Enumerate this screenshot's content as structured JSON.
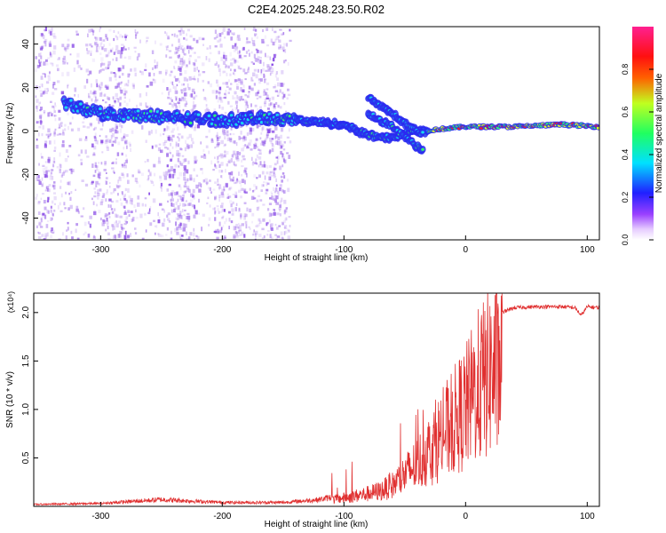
{
  "figure_title": "C2E4.2025.248.23.50.R02",
  "colors": {
    "snr_line": "#e03030",
    "speckle": "#8a4de6",
    "ridge_core": "#18d8f0",
    "ridge_edge": "#2a2af0",
    "hot": "#ff2020",
    "warm": "#e0ff20",
    "mid": "#30ff70"
  },
  "chart_data": [
    {
      "type": "heatmap",
      "title": "C2E4.2025.248.23.50.R02",
      "xlabel": "Height of straight line (km)",
      "ylabel": "Frequency (Hz)",
      "xlim": [
        -355,
        110
      ],
      "ylim": [
        -50,
        48
      ],
      "xticks": [
        -300,
        -200,
        -100,
        0,
        100
      ],
      "yticks": [
        -40,
        -20,
        0,
        20,
        40
      ],
      "colorbar": {
        "label": "Normalized spectral amplitude",
        "range": [
          0,
          1
        ],
        "ticks": [
          "0.0",
          "0.2",
          "0.4",
          "0.6",
          "0.8"
        ],
        "colormap": "rainbow (white-purple-blue-cyan-green-yellow-red-magenta)"
      },
      "ridges": [
        {
          "name": "main carrier",
          "points": [
            [
              -330,
              13
            ],
            [
              -300,
              8
            ],
            [
              -260,
              7
            ],
            [
              -200,
              5
            ],
            [
              -160,
              6
            ],
            [
              -140,
              5
            ],
            [
              -100,
              3
            ],
            [
              -80,
              -2
            ],
            [
              -60,
              -3
            ],
            [
              -45,
              0
            ],
            [
              -35,
              0
            ],
            [
              -20,
              1
            ],
            [
              0,
              2
            ],
            [
              40,
              2
            ],
            [
              80,
              3
            ],
            [
              110,
              2
            ]
          ]
        },
        {
          "name": "diagonal branch 1",
          "points": [
            [
              -80,
              15
            ],
            [
              -60,
              8
            ],
            [
              -45,
              1
            ],
            [
              -35,
              -1
            ]
          ]
        },
        {
          "name": "diagonal branch 2",
          "points": [
            [
              -80,
              8
            ],
            [
              -60,
              2
            ],
            [
              -45,
              -5
            ],
            [
              -35,
              -9
            ]
          ]
        }
      ],
      "noise_region_x": [
        -355,
        -145
      ]
    },
    {
      "type": "line",
      "xlabel": "Height of straight line (km)",
      "ylabel": "SNR (10 * v/v)",
      "multiplier": "(x10⁴)",
      "xlim": [
        -355,
        110
      ],
      "ylim": [
        0,
        2.2
      ],
      "xticks": [
        -300,
        -200,
        -100,
        0,
        100
      ],
      "yticks": [
        "0.5",
        "1.0",
        "1.5",
        "2.0"
      ],
      "series": [
        {
          "name": "SNR envelope (x10^4)",
          "x": [
            -355,
            -300,
            -250,
            -200,
            -150,
            -120,
            -100,
            -80,
            -70,
            -60,
            -50,
            -40,
            -30,
            -20,
            -10,
            0,
            10,
            20,
            30,
            40,
            60,
            80,
            90,
            95,
            100,
            110
          ],
          "y": [
            0.02,
            0.03,
            0.07,
            0.04,
            0.04,
            0.07,
            0.12,
            0.18,
            0.22,
            0.3,
            0.45,
            0.6,
            0.8,
            1.0,
            1.2,
            1.4,
            1.7,
            1.9,
            2.0,
            2.05,
            2.06,
            2.06,
            2.05,
            1.97,
            2.06,
            2.05
          ]
        }
      ]
    }
  ]
}
